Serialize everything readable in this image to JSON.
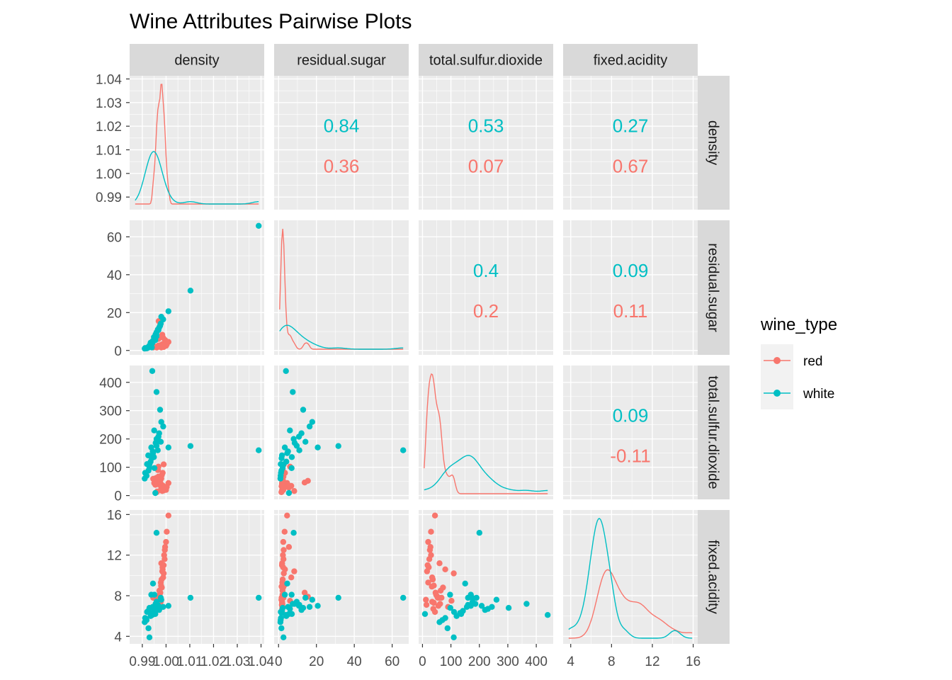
{
  "chart_data": {
    "type": "scatter",
    "title": "Wine Attributes Pairwise Plots",
    "variables": [
      "density",
      "residual.sugar",
      "total.sulfur.dioxide",
      "fixed.acidity"
    ],
    "axes": {
      "density": {
        "range": [
          0.987,
          1.039
        ],
        "ticks": [
          "0.99",
          "1.00",
          "1.01",
          "1.02",
          "1.03",
          "1.04"
        ],
        "tick_values": [
          0.99,
          1.0,
          1.01,
          1.02,
          1.03,
          1.04
        ]
      },
      "residual.sugar": {
        "range": [
          0.6,
          65.8
        ],
        "ticks": [
          "0",
          "20",
          "40",
          "60"
        ],
        "tick_values": [
          0,
          20,
          40,
          60
        ]
      },
      "total.sulfur.dioxide": {
        "range": [
          6,
          440
        ],
        "ticks": [
          "0",
          "100",
          "200",
          "300",
          "400"
        ],
        "tick_values": [
          0,
          100,
          200,
          300,
          400
        ]
      },
      "fixed.acidity": {
        "range": [
          3.8,
          15.9
        ],
        "ticks": [
          "4",
          "8",
          "12",
          "16"
        ],
        "tick_values": [
          4,
          8,
          12,
          16
        ]
      }
    },
    "legend": {
      "title": "wine_type",
      "placement": "right",
      "entries": [
        {
          "name": "red",
          "color": "#F8766D"
        },
        {
          "name": "white",
          "color": "#00BFC4"
        }
      ]
    },
    "correlations": [
      {
        "row": "density",
        "col": "residual.sugar",
        "white": "0.84",
        "red": "0.36"
      },
      {
        "row": "density",
        "col": "total.sulfur.dioxide",
        "white": "0.53",
        "red": "0.07"
      },
      {
        "row": "density",
        "col": "fixed.acidity",
        "white": "0.27",
        "red": "0.67"
      },
      {
        "row": "residual.sugar",
        "col": "total.sulfur.dioxide",
        "white": "0.4",
        "red": "0.2"
      },
      {
        "row": "residual.sugar",
        "col": "fixed.acidity",
        "white": "0.09",
        "red": "0.11"
      },
      {
        "row": "total.sulfur.dioxide",
        "col": "fixed.acidity",
        "white": "0.09",
        "red": "-0.11"
      }
    ],
    "series": [
      {
        "name": "red",
        "color": "#F8766D",
        "points": [
          [
            0.9978,
            1.9,
            34,
            7.4
          ],
          [
            0.9968,
            2.6,
            67,
            7.8
          ],
          [
            0.997,
            2.3,
            54,
            7.8
          ],
          [
            0.998,
            1.9,
            60,
            11.2
          ],
          [
            0.9964,
            1.8,
            40,
            7.3
          ],
          [
            0.9946,
            1.6,
            59,
            7.8
          ],
          [
            0.9968,
            6.1,
            102,
            7.5
          ],
          [
            0.998,
            1.6,
            33,
            8.9
          ],
          [
            0.999,
            2.8,
            110,
            10.2
          ],
          [
            0.9973,
            2.1,
            48,
            8.1
          ],
          [
            0.9986,
            3.4,
            80,
            10.6
          ],
          [
            0.9996,
            5.5,
            28,
            12.8
          ],
          [
            0.9978,
            2.0,
            20,
            9.3
          ],
          [
            0.9962,
            1.7,
            14,
            7.1
          ],
          [
            1.0,
            2.5,
            20,
            13.3
          ],
          [
            0.9992,
            2.3,
            30,
            12.0
          ],
          [
            0.9955,
            1.9,
            38,
            6.7
          ],
          [
            0.9982,
            2.4,
            72,
            8.8
          ],
          [
            1.001,
            4.5,
            44,
            15.9
          ],
          [
            0.9994,
            2.6,
            24,
            11.6
          ],
          [
            0.9958,
            2.0,
            62,
            7.2
          ],
          [
            0.9988,
            6.7,
            34,
            9.8
          ],
          [
            0.9976,
            13.8,
            46,
            8.3
          ],
          [
            0.9969,
            15.5,
            52,
            7.9
          ],
          [
            0.9984,
            8.3,
            16,
            10.4
          ],
          [
            0.9966,
            2.2,
            90,
            6.9
          ],
          [
            0.999,
            1.8,
            18,
            11.0
          ],
          [
            0.9979,
            2.9,
            40,
            9.0
          ],
          [
            0.9961,
            1.5,
            12,
            7.6
          ],
          [
            0.9995,
            2.7,
            26,
            12.5
          ],
          [
            0.9972,
            2.1,
            64,
            8.5
          ],
          [
            0.995,
            1.8,
            44,
            6.4
          ],
          [
            1.0003,
            3.2,
            30,
            14.3
          ],
          [
            0.9985,
            2.4,
            22,
            10.8
          ],
          [
            0.9959,
            1.9,
            56,
            7.0
          ],
          [
            0.9981,
            2.2,
            36,
            9.6
          ]
        ]
      },
      {
        "name": "white",
        "color": "#00BFC4",
        "points": [
          [
            1.001,
            20.7,
            170,
            7.0
          ],
          [
            0.994,
            1.6,
            132,
            6.3
          ],
          [
            0.9951,
            6.9,
            97,
            8.1
          ],
          [
            0.9956,
            8.5,
            186,
            7.2
          ],
          [
            0.9949,
            7.0,
            136,
            6.2
          ],
          [
            0.9938,
            3.3,
            170,
            8.1
          ],
          [
            0.992,
            1.2,
            111,
            6.4
          ],
          [
            0.9971,
            12.1,
            220,
            6.6
          ],
          [
            0.9968,
            10.8,
            208,
            7.0
          ],
          [
            0.9944,
            5.0,
            156,
            6.9
          ],
          [
            0.993,
            2.2,
            98,
            6.8
          ],
          [
            0.996,
            9.6,
            176,
            7.4
          ],
          [
            0.9912,
            1.3,
            80,
            5.8
          ],
          [
            0.9988,
            16.4,
            244,
            6.9
          ],
          [
            0.9978,
            14.2,
            190,
            7.8
          ],
          [
            0.9935,
            4.1,
            120,
            6.0
          ],
          [
            0.9925,
            1.8,
            142,
            6.5
          ],
          [
            0.9965,
            11.0,
            160,
            7.1
          ],
          [
            0.995,
            6.0,
            230,
            6.7
          ],
          [
            0.991,
            1.0,
            60,
            5.4
          ],
          [
            1.0103,
            31.6,
            175,
            7.8
          ],
          [
            1.039,
            65.8,
            160,
            7.8
          ],
          [
            0.9942,
            3.9,
            440,
            6.1
          ],
          [
            0.996,
            7.5,
            366,
            7.2
          ],
          [
            0.9975,
            13.0,
            303,
            6.8
          ],
          [
            0.9955,
            5.5,
            9,
            6.2
          ],
          [
            0.9926,
            1.5,
            88,
            4.8
          ],
          [
            0.998,
            17.8,
            260,
            7.6
          ],
          [
            0.9945,
            4.6,
            150,
            9.2
          ],
          [
            0.993,
            2.6,
            110,
            3.9
          ],
          [
            0.996,
            8.0,
            200,
            14.2
          ],
          [
            0.9918,
            1.1,
            70,
            5.6
          ]
        ]
      }
    ]
  }
}
